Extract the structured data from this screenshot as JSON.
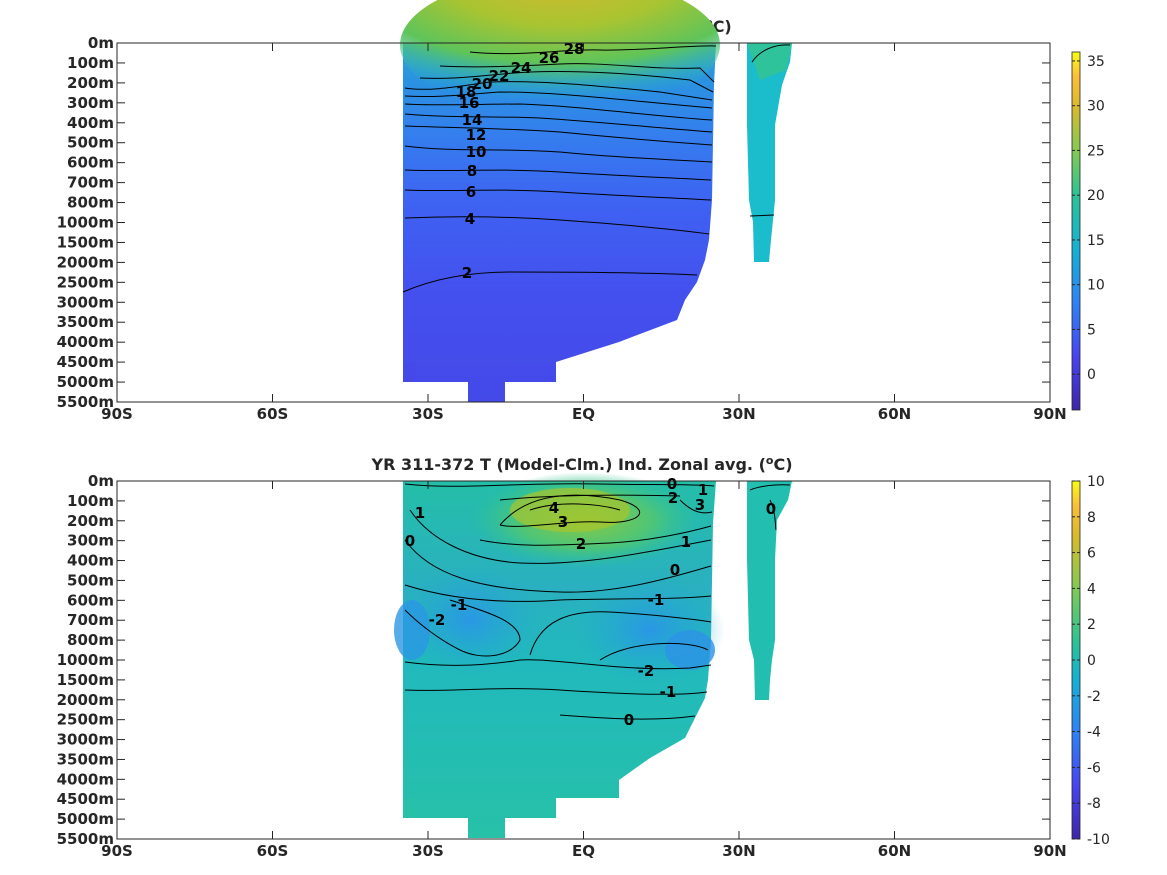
{
  "chart_data": [
    {
      "type": "heatmap",
      "title": "YR 311-372 T Ind. Zonal avg. (°C)",
      "x_ticks": [
        "90S",
        "60S",
        "30S",
        "EQ",
        "30N",
        "60N",
        "90N"
      ],
      "xlim": [
        -90,
        90
      ],
      "y_ticks": [
        "0m",
        "100m",
        "200m",
        "300m",
        "400m",
        "500m",
        "600m",
        "700m",
        "800m",
        "1000m",
        "1500m",
        "2000m",
        "2500m",
        "3000m",
        "3500m",
        "4000m",
        "4500m",
        "5000m",
        "5500m"
      ],
      "colorbar": {
        "min": -4,
        "max": 36,
        "ticks": [
          "35",
          "30",
          "25",
          "20",
          "15",
          "10",
          "5",
          "0"
        ]
      },
      "contour_labels": [
        "28",
        "26",
        "24",
        "22",
        "20",
        "18",
        "16",
        "14",
        "12",
        "10",
        "8",
        "6",
        "4",
        "2"
      ],
      "grid": false
    },
    {
      "type": "heatmap",
      "title": "YR 311-372 T (Model-Clm.) Ind. Zonal avg. (°C)",
      "x_ticks": [
        "90S",
        "60S",
        "30S",
        "EQ",
        "30N",
        "60N",
        "90N"
      ],
      "xlim": [
        -90,
        90
      ],
      "y_ticks": [
        "0m",
        "100m",
        "200m",
        "300m",
        "400m",
        "500m",
        "600m",
        "700m",
        "800m",
        "1000m",
        "1500m",
        "2000m",
        "2500m",
        "3000m",
        "3500m",
        "4000m",
        "4500m",
        "5000m",
        "5500m"
      ],
      "colorbar": {
        "min": -10,
        "max": 10,
        "ticks": [
          "10",
          "8",
          "6",
          "4",
          "2",
          "0",
          "-2",
          "-4",
          "-6",
          "-8",
          "-10"
        ]
      },
      "contour_labels": [
        "0",
        "2",
        "1",
        "3",
        "4",
        "3",
        "2",
        "1",
        "0",
        "1",
        "0",
        "-1",
        "-2",
        "-1",
        "-2",
        "-1",
        "0"
      ],
      "grid": false
    }
  ],
  "colors": {
    "deep_blue": "#4248ec",
    "mid_blue": "#2a8de6",
    "teal": "#19bcc3",
    "green": "#5fc45a",
    "yellow_green": "#a9c431",
    "gold": "#d9ba2e"
  }
}
